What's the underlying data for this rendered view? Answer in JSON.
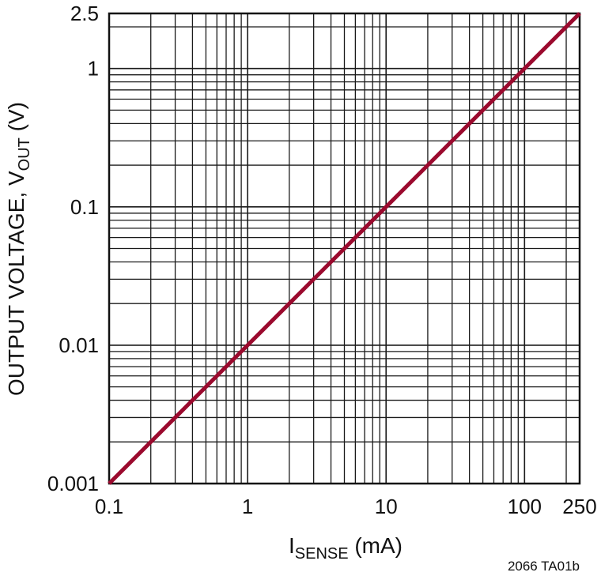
{
  "chart_data": {
    "type": "line",
    "x_scale": "log",
    "y_scale": "log",
    "xlim": [
      0.1,
      250
    ],
    "ylim": [
      0.001,
      2.5
    ],
    "x_ticks": [
      {
        "value": 0.1,
        "label": "0.1"
      },
      {
        "value": 1,
        "label": "1"
      },
      {
        "value": 10,
        "label": "10"
      },
      {
        "value": 100,
        "label": "100"
      },
      {
        "value": 250,
        "label": "250"
      }
    ],
    "y_ticks": [
      {
        "value": 0.001,
        "label": "0.001"
      },
      {
        "value": 0.01,
        "label": "0.01"
      },
      {
        "value": 0.1,
        "label": "0.1"
      },
      {
        "value": 1,
        "label": "1"
      },
      {
        "value": 2.5,
        "label": "2.5"
      }
    ],
    "xlabel": {
      "main": "I",
      "sub": "SENSE",
      "rest": " (mA)"
    },
    "ylabel": {
      "main": "OUTPUT VOLTAGE, V",
      "sub": "OUT",
      "rest": " (V)"
    },
    "grid": true,
    "series": [
      {
        "x": [
          0.1,
          250
        ],
        "y": [
          0.001,
          2.5
        ],
        "color": "#9b0a2e"
      }
    ],
    "footnote": "2066 TA01b"
  }
}
